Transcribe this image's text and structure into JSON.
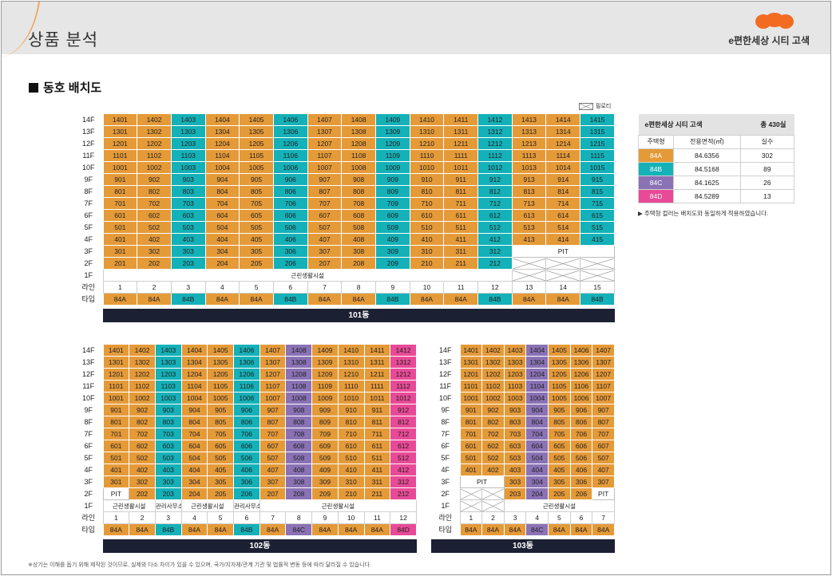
{
  "header": {
    "title": "상품 분석",
    "brand": "e편한세상 시티 고색"
  },
  "section": {
    "title": "동호 배치도"
  },
  "legend": {
    "piloti": "필로티"
  },
  "colors": {
    "84A": "#e59a38",
    "84B": "#14b1b8",
    "84C": "#8a72b5",
    "84D": "#e84a97"
  },
  "labels": {
    "line": "라인",
    "type": "타입",
    "pit": "PIT"
  },
  "floors": [
    "14F",
    "13F",
    "12F",
    "11F",
    "10F",
    "9F",
    "8F",
    "7F",
    "6F",
    "5F",
    "4F",
    "3F",
    "2F",
    "1F"
  ],
  "b101": {
    "name": "101동",
    "types": [
      "84A",
      "84A",
      "84B",
      "84A",
      "84A",
      "84B",
      "84A",
      "84A",
      "84B",
      "84A",
      "84A",
      "84B",
      "84A",
      "84A",
      "84B"
    ],
    "floor1": "근린생활시설"
  },
  "b102": {
    "name": "102동",
    "types": [
      "84A",
      "84A",
      "84B",
      "84A",
      "84A",
      "84B",
      "84A",
      "84C",
      "84A",
      "84A",
      "84A",
      "84D"
    ],
    "floor1": [
      "근린생활시설",
      "관리사무소",
      "근린생활시설",
      "관리사무소",
      "근린생활시설"
    ]
  },
  "b103": {
    "name": "103동",
    "types": [
      "84A",
      "84A",
      "84A",
      "84C",
      "84A",
      "84A",
      "84A"
    ],
    "floor1": "근린생활시설"
  },
  "summary": {
    "title": "e편한세상 시티 고색",
    "total": "총 430실",
    "columns": [
      "주택형",
      "전용면적(㎡)",
      "실수"
    ],
    "rows": [
      {
        "type": "84A",
        "area": "84.6356",
        "count": "302"
      },
      {
        "type": "84B",
        "area": "84.5168",
        "count": "89"
      },
      {
        "type": "84C",
        "area": "84.1625",
        "count": "26"
      },
      {
        "type": "84D",
        "area": "84.5289",
        "count": "13"
      }
    ],
    "note": "▶ 주택형 컬러는 배치도와 동일하게 적용하였습니다."
  },
  "footnote": "※상기는 이해를 돕기 위해 제작된 것이므로, 실제와 다소 차이가 있을 수 있으며, 국가/지자체/관계 기관 및 법률적 변동 등에 따라 달라질 수 있습니다."
}
